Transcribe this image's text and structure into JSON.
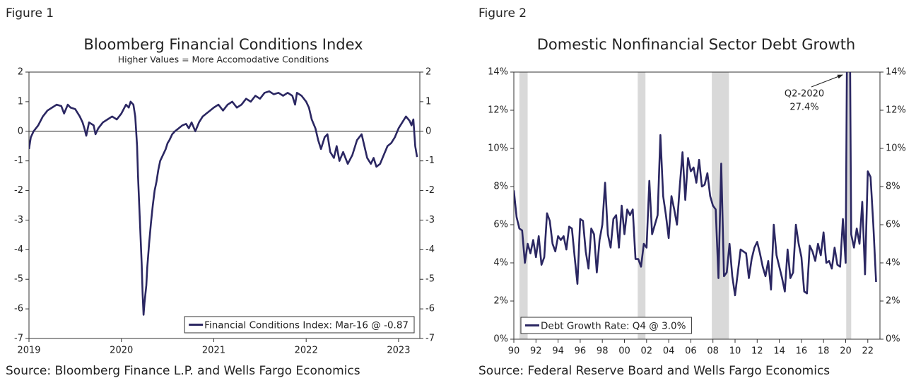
{
  "chart_data": [
    {
      "type": "line",
      "figure_label": "Figure 1",
      "title": "Bloomberg Financial Conditions Index",
      "subtitle": "Higher Values = More Accomodative Conditions",
      "source": "Source: Bloomberg Finance L.P. and Wells Fargo Economics",
      "xlim": [
        2019,
        2023.23
      ],
      "xticks": [
        2019,
        2020,
        2021,
        2022,
        2023
      ],
      "ylim": [
        -7,
        2
      ],
      "yticks": [
        2,
        1,
        0,
        -1,
        -2,
        -3,
        -4,
        -5,
        -6,
        -7
      ],
      "y2lim": [
        -7,
        2
      ],
      "y2ticks": [
        2,
        1,
        0,
        -1,
        -2,
        -3,
        -4,
        -5,
        -6,
        -7
      ],
      "grid": false,
      "zero_line": true,
      "legend": "bottom-right",
      "series": [
        {
          "name": "Financial Conditions Index: Mar-16 @ -0.87",
          "color": "#2b2762",
          "x": [
            2019.0,
            2019.02,
            2019.05,
            2019.1,
            2019.15,
            2019.2,
            2019.25,
            2019.3,
            2019.35,
            2019.38,
            2019.42,
            2019.45,
            2019.5,
            2019.55,
            2019.58,
            2019.6,
            2019.62,
            2019.65,
            2019.7,
            2019.72,
            2019.75,
            2019.8,
            2019.85,
            2019.9,
            2019.95,
            2020.0,
            2020.05,
            2020.08,
            2020.1,
            2020.13,
            2020.15,
            2020.17,
            2020.18,
            2020.2,
            2020.22,
            2020.23,
            2020.24,
            2020.25,
            2020.27,
            2020.28,
            2020.3,
            2020.32,
            2020.34,
            2020.36,
            2020.38,
            2020.4,
            2020.42,
            2020.45,
            2020.48,
            2020.5,
            2020.52,
            2020.55,
            2020.58,
            2020.62,
            2020.66,
            2020.7,
            2020.73,
            2020.76,
            2020.8,
            2020.84,
            2020.88,
            2020.92,
            2020.96,
            2021.0,
            2021.05,
            2021.1,
            2021.15,
            2021.2,
            2021.25,
            2021.3,
            2021.35,
            2021.4,
            2021.45,
            2021.5,
            2021.55,
            2021.6,
            2021.65,
            2021.7,
            2021.75,
            2021.8,
            2021.85,
            2021.88,
            2021.9,
            2021.95,
            2022.0,
            2022.03,
            2022.06,
            2022.1,
            2022.13,
            2022.16,
            2022.2,
            2022.23,
            2022.26,
            2022.3,
            2022.33,
            2022.36,
            2022.4,
            2022.45,
            2022.5,
            2022.55,
            2022.6,
            2022.63,
            2022.66,
            2022.7,
            2022.73,
            2022.76,
            2022.8,
            2022.84,
            2022.88,
            2022.92,
            2022.96,
            2023.0,
            2023.04,
            2023.08,
            2023.12,
            2023.14,
            2023.16,
            2023.18,
            2023.2
          ],
          "values": [
            -0.6,
            -0.2,
            0.0,
            0.2,
            0.5,
            0.7,
            0.8,
            0.9,
            0.85,
            0.6,
            0.9,
            0.8,
            0.75,
            0.5,
            0.3,
            0.1,
            -0.15,
            0.3,
            0.2,
            -0.1,
            0.1,
            0.3,
            0.4,
            0.5,
            0.4,
            0.6,
            0.9,
            0.8,
            1.0,
            0.9,
            0.5,
            -0.5,
            -1.5,
            -3.0,
            -4.5,
            -5.5,
            -6.2,
            -5.8,
            -5.2,
            -4.6,
            -3.8,
            -3.1,
            -2.5,
            -2.0,
            -1.7,
            -1.3,
            -1.0,
            -0.8,
            -0.6,
            -0.4,
            -0.3,
            -0.1,
            0.0,
            0.1,
            0.2,
            0.25,
            0.1,
            0.3,
            0.0,
            0.3,
            0.5,
            0.6,
            0.7,
            0.8,
            0.9,
            0.7,
            0.9,
            1.0,
            0.8,
            0.9,
            1.1,
            1.0,
            1.2,
            1.1,
            1.3,
            1.35,
            1.25,
            1.3,
            1.2,
            1.3,
            1.2,
            0.9,
            1.3,
            1.2,
            1.0,
            0.8,
            0.4,
            0.1,
            -0.3,
            -0.6,
            -0.2,
            -0.1,
            -0.7,
            -0.9,
            -0.5,
            -1.0,
            -0.7,
            -1.1,
            -0.8,
            -0.3,
            -0.1,
            -0.5,
            -0.9,
            -1.1,
            -0.9,
            -1.2,
            -1.1,
            -0.8,
            -0.5,
            -0.4,
            -0.2,
            0.1,
            0.3,
            0.5,
            0.35,
            0.2,
            0.4,
            -0.5,
            -0.87
          ]
        }
      ]
    },
    {
      "type": "line",
      "figure_label": "Figure 2",
      "title": "Domestic Nonfinancial Sector Debt Growth",
      "source": "Source: Federal Reserve Board and Wells Fargo Economics",
      "xlim": [
        1990,
        2023.1
      ],
      "xticks": [
        {
          "value": 1990,
          "label": "90"
        },
        {
          "value": 1992,
          "label": "92"
        },
        {
          "value": 1994,
          "label": "94"
        },
        {
          "value": 1996,
          "label": "96"
        },
        {
          "value": 1998,
          "label": "98"
        },
        {
          "value": 2000,
          "label": "00"
        },
        {
          "value": 2002,
          "label": "02"
        },
        {
          "value": 2004,
          "label": "04"
        },
        {
          "value": 2006,
          "label": "06"
        },
        {
          "value": 2008,
          "label": "08"
        },
        {
          "value": 2010,
          "label": "10"
        },
        {
          "value": 2012,
          "label": "12"
        },
        {
          "value": 2014,
          "label": "14"
        },
        {
          "value": 2016,
          "label": "16"
        },
        {
          "value": 2018,
          "label": "18"
        },
        {
          "value": 2020,
          "label": "20"
        },
        {
          "value": 2022,
          "label": "22"
        }
      ],
      "ylim": [
        0,
        14
      ],
      "yticks": [
        {
          "value": 14,
          "label": "14%"
        },
        {
          "value": 12,
          "label": "12%"
        },
        {
          "value": 10,
          "label": "10%"
        },
        {
          "value": 8,
          "label": "8%"
        },
        {
          "value": 6,
          "label": "6%"
        },
        {
          "value": 4,
          "label": "4%"
        },
        {
          "value": 2,
          "label": "2%"
        },
        {
          "value": 0,
          "label": "0%"
        }
      ],
      "y2lim": [
        0,
        14
      ],
      "y2ticks": [
        {
          "value": 14,
          "label": "14%"
        },
        {
          "value": 12,
          "label": "12%"
        },
        {
          "value": 10,
          "label": "10%"
        },
        {
          "value": 8,
          "label": "8%"
        },
        {
          "value": 6,
          "label": "6%"
        },
        {
          "value": 4,
          "label": "4%"
        },
        {
          "value": 2,
          "label": "2%"
        },
        {
          "value": 0,
          "label": "0%"
        }
      ],
      "grid": false,
      "legend": "bottom-left",
      "shaded_periods": [
        [
          1990.5,
          1991.25
        ],
        [
          2001.2,
          2001.9
        ],
        [
          2007.9,
          2009.45
        ],
        [
          2020.05,
          2020.5
        ]
      ],
      "annotation": {
        "lines": [
          "Q2-2020",
          "27.4%"
        ]
      },
      "series": [
        {
          "name": "Debt Growth Rate: Q4 @ 3.0%",
          "color": "#2b2762",
          "x": [
            1990,
            1990.25,
            1990.5,
            1990.75,
            1991,
            1991.25,
            1991.5,
            1991.75,
            1992,
            1992.25,
            1992.5,
            1992.75,
            1993,
            1993.25,
            1993.5,
            1993.75,
            1994,
            1994.25,
            1994.5,
            1994.75,
            1995,
            1995.25,
            1995.5,
            1995.75,
            1996,
            1996.25,
            1996.5,
            1996.75,
            1997,
            1997.25,
            1997.5,
            1997.75,
            1998,
            1998.25,
            1998.5,
            1998.75,
            1999,
            1999.25,
            1999.5,
            1999.75,
            2000,
            2000.25,
            2000.5,
            2000.75,
            2001,
            2001.25,
            2001.5,
            2001.75,
            2002,
            2002.25,
            2002.5,
            2002.75,
            2003,
            2003.25,
            2003.5,
            2003.75,
            2004,
            2004.25,
            2004.5,
            2004.75,
            2005,
            2005.25,
            2005.5,
            2005.75,
            2006,
            2006.25,
            2006.5,
            2006.75,
            2007,
            2007.25,
            2007.5,
            2007.75,
            2008,
            2008.25,
            2008.5,
            2008.75,
            2009,
            2009.25,
            2009.5,
            2009.75,
            2010,
            2010.25,
            2010.5,
            2010.75,
            2011,
            2011.25,
            2011.5,
            2011.75,
            2012,
            2012.25,
            2012.5,
            2012.75,
            2013,
            2013.25,
            2013.5,
            2013.75,
            2014,
            2014.25,
            2014.5,
            2014.75,
            2015,
            2015.25,
            2015.5,
            2015.75,
            2016,
            2016.25,
            2016.5,
            2016.75,
            2017,
            2017.25,
            2017.5,
            2017.75,
            2018,
            2018.25,
            2018.5,
            2018.75,
            2019,
            2019.25,
            2019.5,
            2019.75,
            2020,
            2020.25,
            2020.5,
            2020.75,
            2021,
            2021.25,
            2021.5,
            2021.75,
            2022,
            2022.25,
            2022.5,
            2022.75
          ],
          "values": [
            7.8,
            6.4,
            5.8,
            5.7,
            4.0,
            5.0,
            4.5,
            5.2,
            4.3,
            5.4,
            3.9,
            4.3,
            6.6,
            6.2,
            5.0,
            4.6,
            5.4,
            5.2,
            5.4,
            4.7,
            5.9,
            5.8,
            4.3,
            2.9,
            6.3,
            6.2,
            4.6,
            3.7,
            5.8,
            5.5,
            3.5,
            5.2,
            6.0,
            8.2,
            5.5,
            4.8,
            6.3,
            6.5,
            4.8,
            7.0,
            5.5,
            6.8,
            6.5,
            6.8,
            4.2,
            4.2,
            3.8,
            5.0,
            4.8,
            8.3,
            5.5,
            6.0,
            6.5,
            10.7,
            7.5,
            6.5,
            5.3,
            7.5,
            6.8,
            6.0,
            8.0,
            9.8,
            7.3,
            9.5,
            8.8,
            9.0,
            8.2,
            9.4,
            8.0,
            8.1,
            8.7,
            7.5,
            7.0,
            6.8,
            3.2,
            9.2,
            3.3,
            3.5,
            5.0,
            3.3,
            2.3,
            3.5,
            4.7,
            4.6,
            4.5,
            3.2,
            4.2,
            4.8,
            5.1,
            4.5,
            3.8,
            3.3,
            4.1,
            2.6,
            6.0,
            4.4,
            3.8,
            3.2,
            2.5,
            4.7,
            3.2,
            3.5,
            6.0,
            5.0,
            4.3,
            2.5,
            2.4,
            4.9,
            4.6,
            4.1,
            5.0,
            4.4,
            5.6,
            4.0,
            4.1,
            3.7,
            4.8,
            3.9,
            3.8,
            6.3,
            4.0,
            27.4,
            5.5,
            4.8,
            5.8,
            5.0,
            7.2,
            3.4,
            8.8,
            8.5,
            6.0,
            3.0
          ]
        }
      ]
    }
  ]
}
